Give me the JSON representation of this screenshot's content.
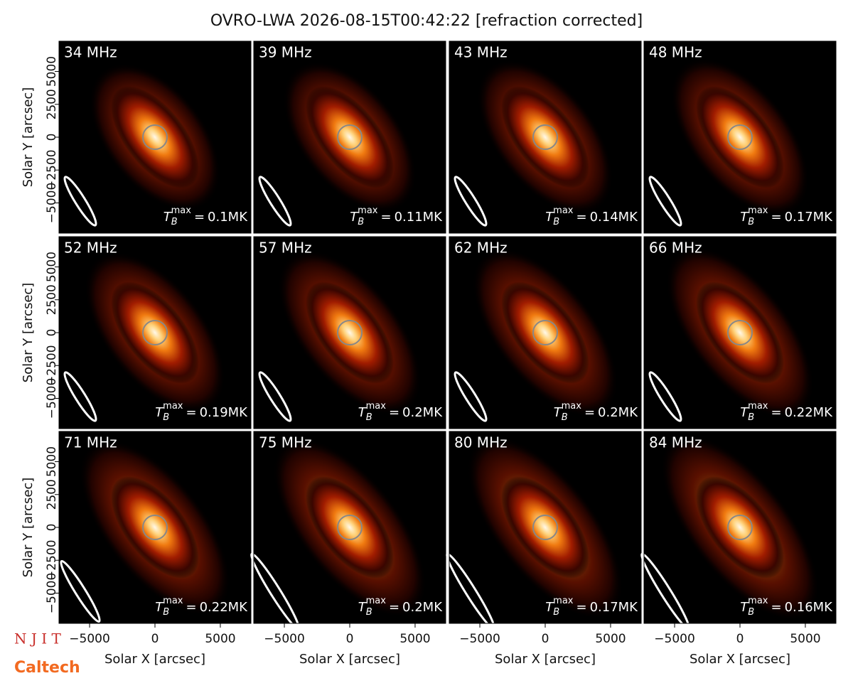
{
  "chart_data": {
    "type": "image_grid",
    "title": "OVRO-LWA 2026-08-15T00:42:22 [refraction corrected]",
    "xlabel": "Solar X [arcsec]",
    "ylabel": "Solar Y [arcsec]",
    "xlim": [
      -7340,
      7340
    ],
    "ylim": [
      -7300,
      7300
    ],
    "xticks": [
      {
        "value": -5000,
        "label": "−5000"
      },
      0,
      5000
    ],
    "yticks": [
      {
        "value": -5000,
        "label": "−5000"
      },
      {
        "value": -2500,
        "label": "−2500"
      },
      0,
      2500,
      5000
    ],
    "categories": [
      "34 MHz",
      "39 MHz",
      "43 MHz",
      "48 MHz",
      "52 MHz",
      "57 MHz",
      "62 MHz",
      "66 MHz",
      "71 MHz",
      "75 MHz",
      "80 MHz",
      "84 MHz"
    ],
    "values": [
      0.1,
      0.11,
      0.14,
      0.17,
      0.19,
      0.2,
      0.2,
      0.22,
      0.22,
      0.2,
      0.17,
      0.16
    ],
    "value_labels": [
      "0.1MK",
      "0.11MK",
      "0.14MK",
      "0.17MK",
      "0.19MK",
      "0.2MK",
      "0.2MK",
      "0.22MK",
      "0.22MK",
      "0.2MK",
      "0.17MK",
      "0.16MK"
    ],
    "value_symbol": {
      "base": "T",
      "sub": "B",
      "sup": "max",
      "eq": "="
    }
  },
  "logos": [
    "N J I T",
    "Caltech"
  ]
}
